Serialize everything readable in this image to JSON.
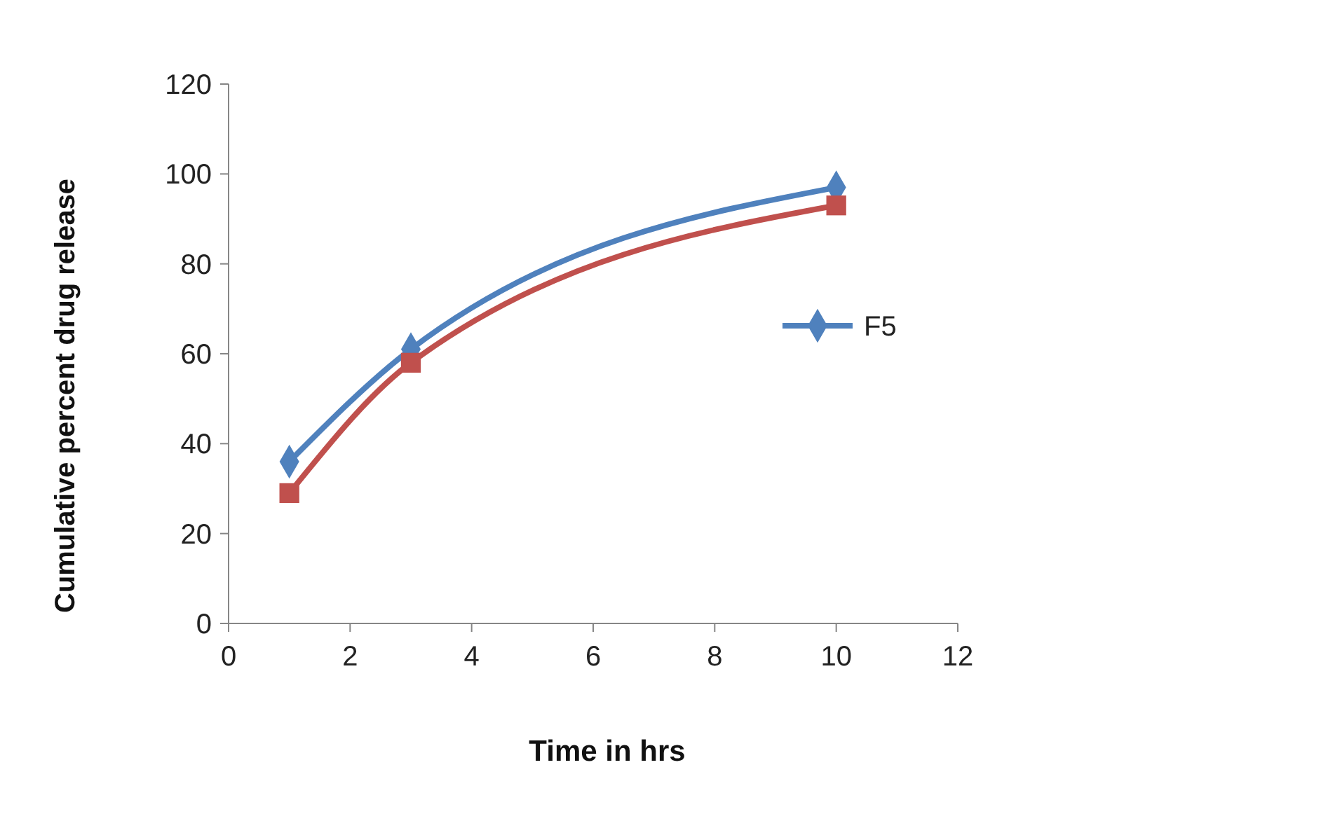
{
  "chart_data": {
    "type": "line",
    "xlabel": "Time in hrs",
    "ylabel": "Cumulative percent drug release",
    "xlim": [
      0,
      12
    ],
    "xticks": [
      0,
      2,
      4,
      6,
      8,
      10,
      12
    ],
    "ylim": [
      0,
      120
    ],
    "yticks": [
      0,
      20,
      40,
      60,
      80,
      100,
      120
    ],
    "legend": "right",
    "grid": false,
    "line_style": "solid",
    "series": [
      {
        "name": "F5",
        "color": "#4f81bd",
        "marker": "diamond",
        "x": [
          1,
          3,
          10
        ],
        "values": [
          36,
          61,
          97
        ]
      },
      {
        "color": "#c0504d",
        "marker": "square",
        "x": [
          1,
          3,
          10
        ],
        "values": [
          29,
          58,
          93
        ]
      }
    ]
  }
}
